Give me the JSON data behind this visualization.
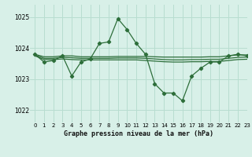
{
  "background_color": "#d8f0e8",
  "grid_color": "#b8ddd0",
  "line_color": "#2d6e3a",
  "title": "Graphe pression niveau de la mer (hPa)",
  "xlim": [
    -0.5,
    23
  ],
  "ylim": [
    1021.6,
    1025.4
  ],
  "yticks": [
    1022,
    1023,
    1024,
    1025
  ],
  "xticks": [
    0,
    1,
    2,
    3,
    4,
    5,
    6,
    7,
    8,
    9,
    10,
    11,
    12,
    13,
    14,
    15,
    16,
    17,
    18,
    19,
    20,
    21,
    22,
    23
  ],
  "series": [
    {
      "x": [
        0,
        1,
        2,
        3,
        4,
        5,
        6,
        7,
        8,
        9,
        10,
        11,
        12,
        13,
        14,
        15,
        16,
        17,
        18,
        19,
        20,
        21,
        22,
        23
      ],
      "y": [
        1023.8,
        1023.55,
        1023.6,
        1023.75,
        1023.1,
        1023.55,
        1023.65,
        1024.15,
        1024.2,
        1024.95,
        1024.6,
        1024.15,
        1023.8,
        1022.85,
        1022.55,
        1022.55,
        1022.3,
        1023.1,
        1023.35,
        1023.55,
        1023.55,
        1023.75,
        1023.8,
        1023.75
      ],
      "marker": true
    },
    {
      "x": [
        0,
        1,
        2,
        3,
        4,
        5,
        6,
        7,
        8,
        9,
        10,
        11,
        12,
        13,
        14,
        15,
        16,
        17,
        18,
        19,
        20,
        21,
        22,
        23
      ],
      "y": [
        1023.8,
        1023.72,
        1023.72,
        1023.75,
        1023.75,
        1023.72,
        1023.72,
        1023.72,
        1023.72,
        1023.73,
        1023.73,
        1023.73,
        1023.73,
        1023.72,
        1023.71,
        1023.71,
        1023.71,
        1023.71,
        1023.71,
        1023.72,
        1023.72,
        1023.75,
        1023.78,
        1023.78
      ],
      "marker": false
    },
    {
      "x": [
        0,
        1,
        2,
        3,
        4,
        5,
        6,
        7,
        8,
        9,
        10,
        11,
        12,
        13,
        14,
        15,
        16,
        17,
        18,
        19,
        20,
        21,
        22,
        23
      ],
      "y": [
        1023.75,
        1023.63,
        1023.63,
        1023.65,
        1023.63,
        1023.62,
        1023.62,
        1023.62,
        1023.62,
        1023.62,
        1023.62,
        1023.62,
        1023.6,
        1023.58,
        1023.56,
        1023.55,
        1023.55,
        1023.56,
        1023.56,
        1023.57,
        1023.57,
        1023.6,
        1023.63,
        1023.64
      ],
      "marker": false
    },
    {
      "x": [
        0,
        1,
        2,
        3,
        4,
        5,
        6,
        7,
        8,
        9,
        10,
        11,
        12,
        13,
        14,
        15,
        16,
        17,
        18,
        19,
        20,
        21,
        22,
        23
      ],
      "y": [
        1023.78,
        1023.67,
        1023.67,
        1023.7,
        1023.69,
        1023.67,
        1023.67,
        1023.67,
        1023.67,
        1023.68,
        1023.68,
        1023.68,
        1023.67,
        1023.65,
        1023.63,
        1023.62,
        1023.62,
        1023.63,
        1023.63,
        1023.64,
        1023.64,
        1023.67,
        1023.7,
        1023.71
      ],
      "marker": false
    }
  ]
}
